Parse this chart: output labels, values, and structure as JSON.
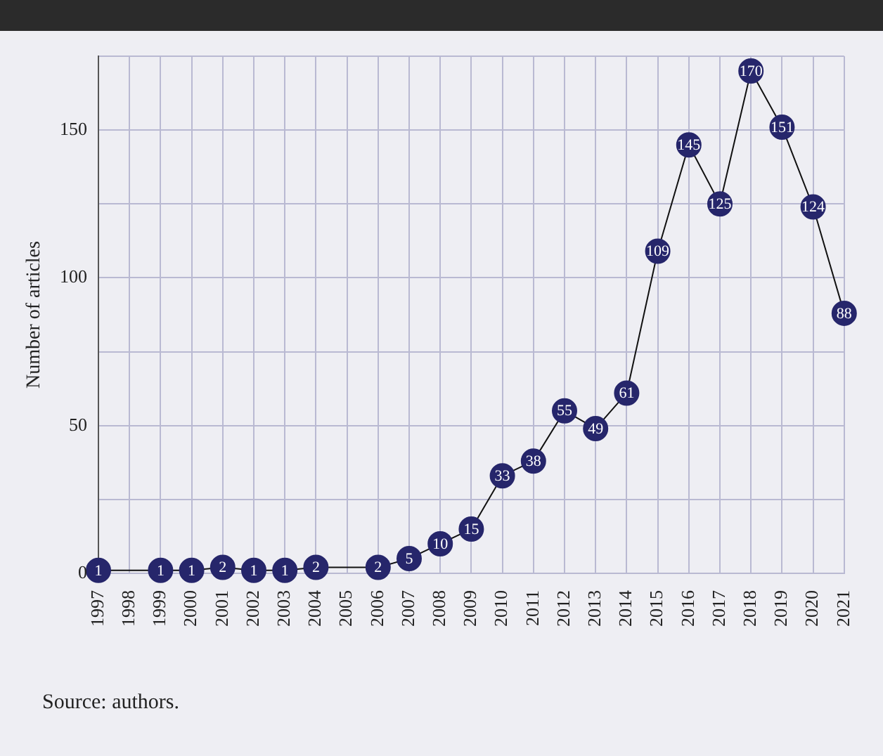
{
  "chart_data": {
    "type": "line",
    "ylabel": "Number of articles",
    "x": [
      1997,
      1999,
      2000,
      2001,
      2002,
      2003,
      2004,
      2006,
      2007,
      2008,
      2009,
      2010,
      2011,
      2012,
      2013,
      2014,
      2015,
      2016,
      2017,
      2018,
      2019,
      2020,
      2021
    ],
    "series": [
      {
        "color": "#26266b",
        "values": [
          1,
          1,
          1,
          2,
          1,
          1,
          2,
          2,
          5,
          10,
          15,
          33,
          38,
          55,
          49,
          61,
          109,
          145,
          125,
          170,
          151,
          124,
          88
        ]
      }
    ],
    "xlim": [
      1997,
      2021
    ],
    "xticks": [
      1997,
      1998,
      1999,
      2000,
      2001,
      2002,
      2003,
      2004,
      2005,
      2006,
      2007,
      2008,
      2009,
      2010,
      2011,
      2012,
      2013,
      2014,
      2015,
      2016,
      2017,
      2018,
      2019,
      2020,
      2021
    ],
    "ylim": [
      0,
      175
    ],
    "yticks": [
      0,
      {
        "value": 25,
        "label": null
      },
      50,
      {
        "value": 75,
        "label": null
      },
      100,
      {
        "value": 125,
        "label": null
      },
      150,
      {
        "value": 175,
        "label": null
      }
    ],
    "grid": true,
    "legend": false,
    "marker": "circle",
    "line_style": "solid",
    "data_labels": true,
    "annotations": [
      "Source: authors."
    ]
  }
}
